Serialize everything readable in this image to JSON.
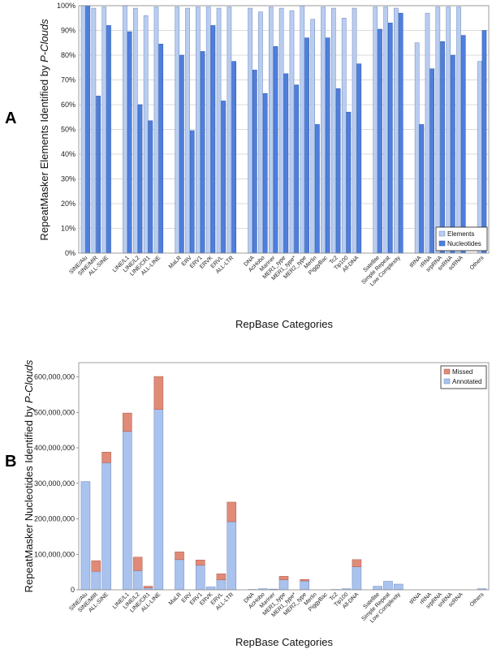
{
  "panel_labels": [
    "A",
    "B"
  ],
  "chart_data": [
    {
      "type": "bar",
      "panel": "A",
      "title": "",
      "xlabel": "RepBase Categories",
      "ylabel": "RepeatMasker Elements Identified by ",
      "ylabel_em": "P-Clouds",
      "ylim": [
        0,
        100
      ],
      "yticks": [
        "0%",
        "10%",
        "20%",
        "30%",
        "40%",
        "50%",
        "60%",
        "70%",
        "80%",
        "90%",
        "100%"
      ],
      "grid": true,
      "legend": "bottom-right",
      "colors": {
        "Elements": "#b9cdf0",
        "Nucleotides": "#4f7fdd"
      },
      "groups": [
        [
          "SINE/Alu",
          "SINE/MIR",
          "ALL-SINE"
        ],
        [
          "LINE/L1",
          "LINE/L2",
          "LINE/CR1",
          "ALL-LINE"
        ],
        [
          "MaLR",
          "ERV",
          "ERV1",
          "ERVK",
          "ERVL",
          "ALL-LTR"
        ],
        [
          "DNA",
          "AcHobo",
          "Mariner",
          "MER1_type",
          "MER1_type*",
          "MER2_type",
          "Merlin",
          "PiggyBac",
          "Tc2",
          "Tip100",
          "All-DNA"
        ],
        [
          "Satellite",
          "Simple Repeat",
          "Low Complexity"
        ],
        [
          "tRNA",
          "rRNA",
          "srpRNA",
          "snRNA",
          "scRNA"
        ],
        [
          "Others"
        ]
      ],
      "series": [
        {
          "name": "Elements",
          "values": [
            100,
            99,
            99.5,
            100,
            99,
            96,
            99.5,
            99.5,
            99,
            99.5,
            99.5,
            99,
            99.5,
            99,
            97.5,
            99.5,
            99,
            98,
            100,
            94.5,
            99.5,
            99,
            95,
            99,
            99.5,
            99.5,
            99,
            85,
            97,
            99.5,
            99.5,
            99.5,
            77.5
          ]
        },
        {
          "name": "Nucleotides",
          "values": [
            100,
            63.5,
            92,
            89.5,
            60,
            53.5,
            84.5,
            80,
            49.5,
            81.5,
            92,
            61.5,
            77.5,
            74,
            64.5,
            83.5,
            72.5,
            68,
            87,
            52,
            87,
            66.5,
            57,
            76.5,
            90.5,
            93,
            97,
            52,
            74.5,
            85.5,
            80,
            88,
            90
          ]
        }
      ]
    },
    {
      "type": "bar",
      "stacked": true,
      "panel": "B",
      "title": "",
      "xlabel": "RepBase Categories",
      "ylabel": "RepeatMasker Nucleotides Identified by ",
      "ylabel_em": "P-Clouds",
      "ylim": [
        0,
        600000000
      ],
      "yticks": [
        "0",
        "100,000,000",
        "200,000,000",
        "300,000,000",
        "400,000,000",
        "500,000,000",
        "600,000,000"
      ],
      "grid": false,
      "legend": "top-right",
      "colors": {
        "Missed": "#e08a78",
        "Annotated": "#a9c2ee"
      },
      "groups": [
        [
          "SINE/Alu",
          "SINE/MIR",
          "ALL-SINE"
        ],
        [
          "LINE/L1",
          "LINE/L2",
          "LINE/CR1",
          "ALL-LINE"
        ],
        [
          "MaLR",
          "ERV",
          "ERV1",
          "ERVK",
          "ERVL",
          "ALL-LTR"
        ],
        [
          "DNA",
          "AcHobo",
          "Mariner",
          "MER1_type",
          "MER1_type*",
          "MER2_type",
          "Merlin",
          "PiggyBac",
          "Tc2",
          "Tip100",
          "All-DNA"
        ],
        [
          "Satellite",
          "Simple Repeat",
          "Low Complexity"
        ],
        [
          "tRNA",
          "rRNA",
          "srpRNA",
          "snRNA",
          "scRNA"
        ],
        [
          "Others"
        ]
      ],
      "series": [
        {
          "name": "Missed",
          "values": [
            0,
            30000000,
            30000000,
            52000000,
            38000000,
            5000000,
            93000000,
            22000000,
            0,
            15000000,
            0,
            17000000,
            55000000,
            0,
            0,
            0,
            10000000,
            0,
            4000000,
            0,
            0,
            0,
            0,
            20000000,
            0,
            0,
            0,
            0,
            0,
            0,
            0,
            0,
            0
          ]
        },
        {
          "name": "Annotated",
          "values": [
            305000000,
            52000000,
            358000000,
            446000000,
            54000000,
            5000000,
            508000000,
            85000000,
            0,
            69000000,
            8000000,
            28000000,
            192000000,
            1000000,
            3000000,
            2000000,
            28000000,
            0,
            25000000,
            0,
            0,
            1000000,
            3000000,
            65000000,
            10000000,
            24000000,
            16000000,
            0,
            0,
            0,
            0,
            0,
            3000000
          ]
        }
      ]
    }
  ]
}
